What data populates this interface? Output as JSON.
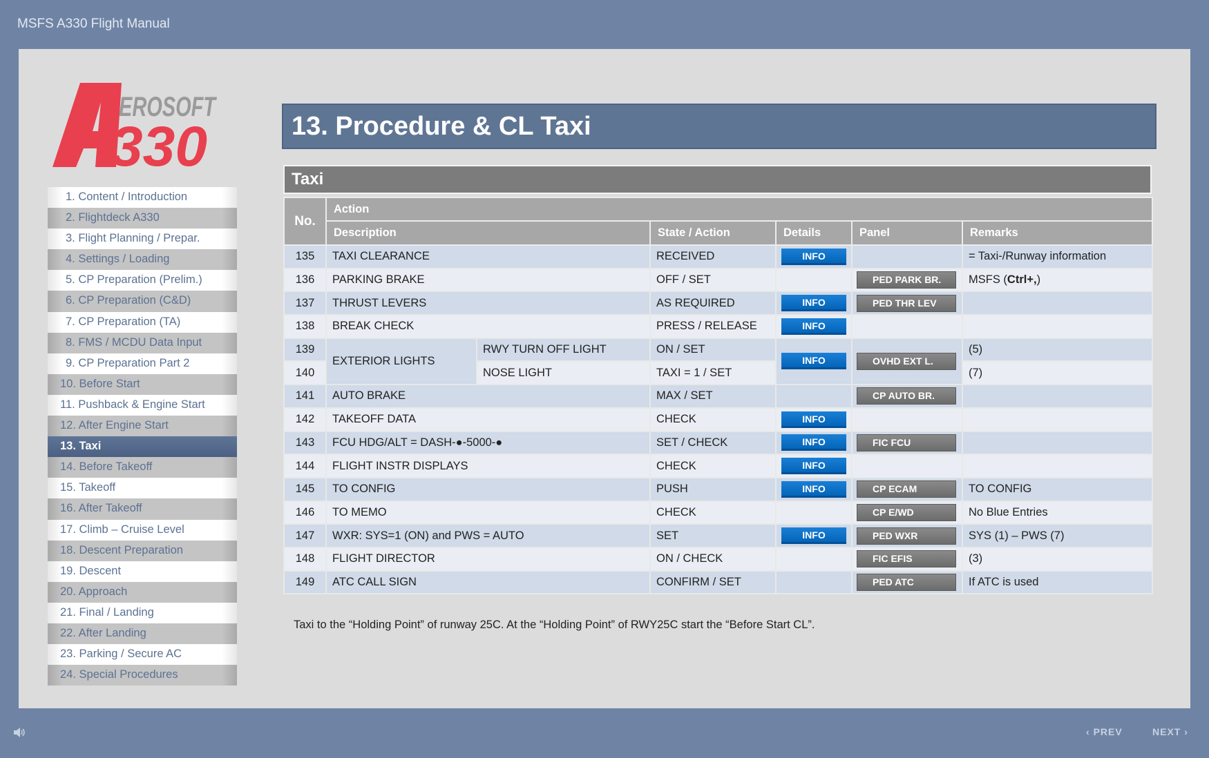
{
  "app_title": "MSFS A330 Flight Manual",
  "logo": {
    "big": "A",
    "top": "EROSOFT",
    "bottom": "330",
    "color": "#e8404f"
  },
  "nav": {
    "active_index": 12,
    "items": [
      "1. Content / Introduction",
      "2. Flightdeck A330",
      "3. Flight Planning / Prepar.",
      "4. Settings / Loading",
      "5. CP Preparation (Prelim.)",
      "6. CP Preparation (C&D)",
      "7. CP Preparation (TA)",
      "8. FMS / MCDU Data Input",
      "9. CP Preparation Part 2",
      "10. Before Start",
      "11. Pushback & Engine Start",
      "12. After Engine Start",
      "13. Taxi",
      "14. Before Takeoff",
      "15. Takeoff",
      "16. After Takeoff",
      "17. Climb – Cruise Level",
      "18. Descent Preparation",
      "19. Descent",
      "20. Approach",
      "21. Final / Landing",
      "22. After Landing",
      "23. Parking / Secure AC",
      "24. Special Procedures"
    ]
  },
  "page_title": "13. Procedure & CL Taxi",
  "table": {
    "section": "Taxi",
    "headers": {
      "no": "No.",
      "action": "Action",
      "description": "Description",
      "state": "State / Action",
      "details": "Details",
      "panel": "Panel",
      "remarks": "Remarks"
    },
    "info_label": "INFO",
    "rows": [
      {
        "no": "135",
        "desc": "TAXI CLEARANCE",
        "state": "RECEIVED",
        "info": true,
        "panel": "",
        "remarks": "= Taxi-/Runway information"
      },
      {
        "no": "136",
        "desc": "PARKING BRAKE",
        "state": "OFF / SET",
        "info": false,
        "panel": "PED PARK BR.",
        "remarks": "MSFS (",
        "remarks_bold": "Ctrl+,",
        "remarks_after": ")"
      },
      {
        "no": "137",
        "desc": "THRUST LEVERS",
        "state": "AS REQUIRED",
        "info": true,
        "panel": "PED THR LEV",
        "remarks": ""
      },
      {
        "no": "138",
        "desc": "BREAK CHECK",
        "state": "PRESS / RELEASE",
        "info": true,
        "panel": "",
        "remarks": ""
      },
      {
        "no": "139",
        "group": "EXTERIOR LIGHTS",
        "sub": "RWY TURN OFF LIGHT",
        "state": "ON / SET",
        "info": true,
        "panel": "OVHD EXT L.",
        "remarks": "(5)"
      },
      {
        "no": "140",
        "sub": "NOSE LIGHT",
        "state": "TAXI = 1 / SET",
        "remarks": "(7)"
      },
      {
        "no": "141",
        "desc": "AUTO BRAKE",
        "state": "MAX / SET",
        "info": false,
        "panel": "CP AUTO BR.",
        "remarks": ""
      },
      {
        "no": "142",
        "desc": "TAKEOFF DATA",
        "state": "CHECK",
        "info": true,
        "panel": "",
        "remarks": ""
      },
      {
        "no": "143",
        "desc": "FCU HDG/ALT = DASH-●-5000-●",
        "state": "SET / CHECK",
        "info": true,
        "panel": "FIC FCU",
        "remarks": ""
      },
      {
        "no": "144",
        "desc": "FLIGHT INSTR DISPLAYS",
        "state": "CHECK",
        "info": true,
        "panel": "",
        "remarks": ""
      },
      {
        "no": "145",
        "desc": "TO CONFIG",
        "state": "PUSH",
        "info": true,
        "panel": "CP ECAM",
        "remarks": "TO CONFIG"
      },
      {
        "no": "146",
        "desc": "TO MEMO",
        "state": "CHECK",
        "info": false,
        "panel": "CP E/WD",
        "remarks": "No Blue Entries"
      },
      {
        "no": "147",
        "desc": "WXR: SYS=1 (ON) and PWS = AUTO",
        "state": "SET",
        "info": true,
        "panel": "PED WXR",
        "remarks": "SYS (1) – PWS (7)"
      },
      {
        "no": "148",
        "desc": "FLIGHT DIRECTOR",
        "state": "ON / CHECK",
        "info": false,
        "panel": "FIC EFIS",
        "remarks": "(3)"
      },
      {
        "no": "149",
        "desc": "ATC CALL SIGN",
        "state": "CONFIRM / SET",
        "info": false,
        "panel": "PED ATC",
        "remarks": "If ATC is used"
      }
    ]
  },
  "note": "Taxi to the “Holding Point” of runway 25C. At the “Holding Point” of RWY25C start the “Before Start CL”.",
  "footer": {
    "prev": "PREV",
    "next": "NEXT",
    "speaker_icon": "speaker-icon"
  }
}
